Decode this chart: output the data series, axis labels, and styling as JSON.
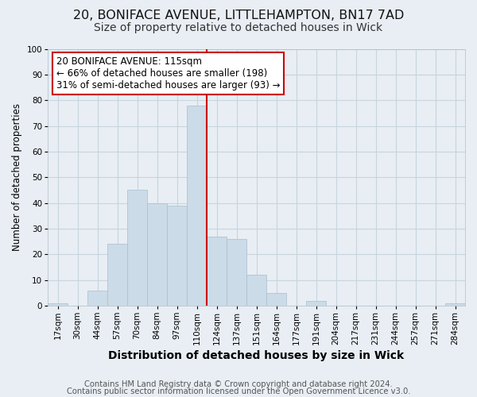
{
  "title1": "20, BONIFACE AVENUE, LITTLEHAMPTON, BN17 7AD",
  "title2": "Size of property relative to detached houses in Wick",
  "xlabel": "Distribution of detached houses by size in Wick",
  "ylabel": "Number of detached properties",
  "bar_labels": [
    "17sqm",
    "30sqm",
    "44sqm",
    "57sqm",
    "70sqm",
    "84sqm",
    "97sqm",
    "110sqm",
    "124sqm",
    "137sqm",
    "151sqm",
    "164sqm",
    "177sqm",
    "191sqm",
    "204sqm",
    "217sqm",
    "231sqm",
    "244sqm",
    "257sqm",
    "271sqm",
    "284sqm"
  ],
  "bar_heights": [
    1,
    0,
    6,
    24,
    45,
    40,
    39,
    78,
    27,
    26,
    12,
    5,
    0,
    2,
    0,
    0,
    0,
    0,
    0,
    0,
    1
  ],
  "bar_color": "#ccdbe8",
  "bar_edge_color": "#a8becc",
  "property_line_color": "#cc0000",
  "ylim": [
    0,
    100
  ],
  "annotation_title": "20 BONIFACE AVENUE: 115sqm",
  "annotation_line1": "← 66% of detached houses are smaller (198)",
  "annotation_line2": "31% of semi-detached houses are larger (93) →",
  "annotation_box_color": "#ffffff",
  "annotation_box_edge": "#cc0000",
  "footer1": "Contains HM Land Registry data © Crown copyright and database right 2024.",
  "footer2": "Contains public sector information licensed under the Open Government Licence v3.0.",
  "background_color": "#e8eef4",
  "plot_background_color": "#e8eef4",
  "grid_color": "#c8d4de",
  "title1_fontsize": 11.5,
  "title2_fontsize": 10,
  "xlabel_fontsize": 10,
  "ylabel_fontsize": 8.5,
  "tick_fontsize": 7.5,
  "annotation_fontsize": 8.5,
  "footer_fontsize": 7.2
}
